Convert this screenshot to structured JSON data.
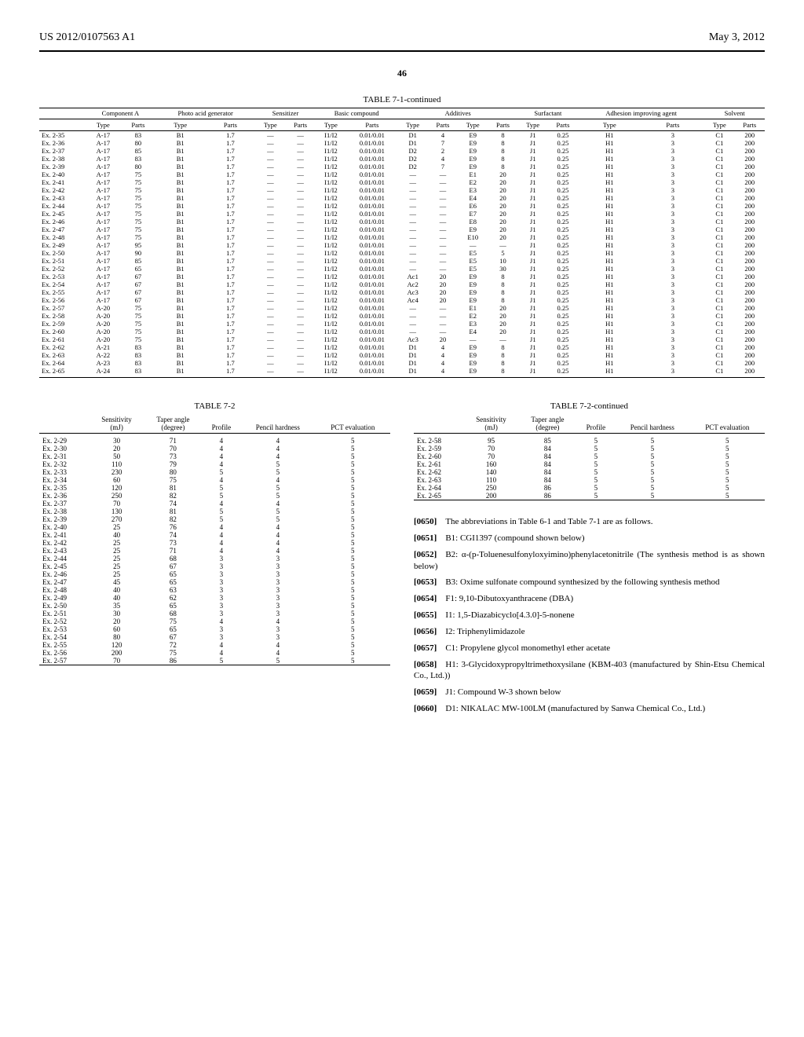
{
  "header": {
    "left": "US 2012/0107563 A1",
    "right": "May 3, 2012"
  },
  "page_number": "46",
  "table71": {
    "title": "TABLE 7-1-continued",
    "groups": [
      "Component A",
      "Photo acid generator",
      "Sensitizer",
      "Basic compound",
      "Additives",
      "",
      "Surfactant",
      "Adhesion improving agent",
      "Solvent"
    ],
    "subheaders": [
      "",
      "Type",
      "Parts",
      "Type",
      "Parts",
      "Type",
      "Parts",
      "Type",
      "Parts",
      "Type",
      "Parts",
      "Type",
      "Parts",
      "Type",
      "Parts",
      "Type",
      "Parts",
      "Type",
      "Parts"
    ],
    "rows": [
      [
        "Ex. 2-35",
        "A-17",
        "83",
        "B1",
        "1.7",
        "—",
        "—",
        "I1/I2",
        "0.01/0.01",
        "D1",
        "4",
        "E9",
        "8",
        "J1",
        "0.25",
        "H1",
        "3",
        "C1",
        "200"
      ],
      [
        "Ex. 2-36",
        "A-17",
        "80",
        "B1",
        "1.7",
        "—",
        "—",
        "I1/I2",
        "0.01/0.01",
        "D1",
        "7",
        "E9",
        "8",
        "J1",
        "0.25",
        "H1",
        "3",
        "C1",
        "200"
      ],
      [
        "Ex. 2-37",
        "A-17",
        "85",
        "B1",
        "1.7",
        "—",
        "—",
        "I1/I2",
        "0.01/0.01",
        "D2",
        "2",
        "E9",
        "8",
        "J1",
        "0.25",
        "H1",
        "3",
        "C1",
        "200"
      ],
      [
        "Ex. 2-38",
        "A-17",
        "83",
        "B1",
        "1.7",
        "—",
        "—",
        "I1/I2",
        "0.01/0.01",
        "D2",
        "4",
        "E9",
        "8",
        "J1",
        "0.25",
        "H1",
        "3",
        "C1",
        "200"
      ],
      [
        "Ex. 2-39",
        "A-17",
        "80",
        "B1",
        "1.7",
        "—",
        "—",
        "I1/I2",
        "0.01/0.01",
        "D2",
        "7",
        "E9",
        "8",
        "J1",
        "0.25",
        "H1",
        "3",
        "C1",
        "200"
      ],
      [
        "Ex. 2-40",
        "A-17",
        "75",
        "B1",
        "1.7",
        "—",
        "—",
        "I1/I2",
        "0.01/0.01",
        "—",
        "—",
        "E1",
        "20",
        "J1",
        "0.25",
        "H1",
        "3",
        "C1",
        "200"
      ],
      [
        "Ex. 2-41",
        "A-17",
        "75",
        "B1",
        "1.7",
        "—",
        "—",
        "I1/I2",
        "0.01/0.01",
        "—",
        "—",
        "E2",
        "20",
        "J1",
        "0.25",
        "H1",
        "3",
        "C1",
        "200"
      ],
      [
        "Ex. 2-42",
        "A-17",
        "75",
        "B1",
        "1.7",
        "—",
        "—",
        "I1/I2",
        "0.01/0.01",
        "—",
        "—",
        "E3",
        "20",
        "J1",
        "0.25",
        "H1",
        "3",
        "C1",
        "200"
      ],
      [
        "Ex. 2-43",
        "A-17",
        "75",
        "B1",
        "1.7",
        "—",
        "—",
        "I1/I2",
        "0.01/0.01",
        "—",
        "—",
        "E4",
        "20",
        "J1",
        "0.25",
        "H1",
        "3",
        "C1",
        "200"
      ],
      [
        "Ex. 2-44",
        "A-17",
        "75",
        "B1",
        "1.7",
        "—",
        "—",
        "I1/I2",
        "0.01/0.01",
        "—",
        "—",
        "E6",
        "20",
        "J1",
        "0.25",
        "H1",
        "3",
        "C1",
        "200"
      ],
      [
        "Ex. 2-45",
        "A-17",
        "75",
        "B1",
        "1.7",
        "—",
        "—",
        "I1/I2",
        "0.01/0.01",
        "—",
        "—",
        "E7",
        "20",
        "J1",
        "0.25",
        "H1",
        "3",
        "C1",
        "200"
      ],
      [
        "Ex. 2-46",
        "A-17",
        "75",
        "B1",
        "1.7",
        "—",
        "—",
        "I1/I2",
        "0.01/0.01",
        "—",
        "—",
        "E8",
        "20",
        "J1",
        "0.25",
        "H1",
        "3",
        "C1",
        "200"
      ],
      [
        "Ex. 2-47",
        "A-17",
        "75",
        "B1",
        "1.7",
        "—",
        "—",
        "I1/I2",
        "0.01/0.01",
        "—",
        "—",
        "E9",
        "20",
        "J1",
        "0.25",
        "H1",
        "3",
        "C1",
        "200"
      ],
      [
        "Ex. 2-48",
        "A-17",
        "75",
        "B1",
        "1.7",
        "—",
        "—",
        "I1/I2",
        "0.01/0.01",
        "—",
        "—",
        "E10",
        "20",
        "J1",
        "0.25",
        "H1",
        "3",
        "C1",
        "200"
      ],
      [
        "Ex. 2-49",
        "A-17",
        "95",
        "B1",
        "1.7",
        "—",
        "—",
        "I1/I2",
        "0.01/0.01",
        "—",
        "—",
        "—",
        "—",
        "J1",
        "0.25",
        "H1",
        "3",
        "C1",
        "200"
      ],
      [
        "Ex. 2-50",
        "A-17",
        "90",
        "B1",
        "1.7",
        "—",
        "—",
        "I1/I2",
        "0.01/0.01",
        "—",
        "—",
        "E5",
        "5",
        "J1",
        "0.25",
        "H1",
        "3",
        "C1",
        "200"
      ],
      [
        "Ex. 2-51",
        "A-17",
        "85",
        "B1",
        "1.7",
        "—",
        "—",
        "I1/I2",
        "0.01/0.01",
        "—",
        "—",
        "E5",
        "10",
        "J1",
        "0.25",
        "H1",
        "3",
        "C1",
        "200"
      ],
      [
        "Ex. 2-52",
        "A-17",
        "65",
        "B1",
        "1.7",
        "—",
        "—",
        "I1/I2",
        "0.01/0.01",
        "—",
        "—",
        "E5",
        "30",
        "J1",
        "0.25",
        "H1",
        "3",
        "C1",
        "200"
      ],
      [
        "Ex. 2-53",
        "A-17",
        "67",
        "B1",
        "1.7",
        "—",
        "—",
        "I1/I2",
        "0.01/0.01",
        "Ac1",
        "20",
        "E9",
        "8",
        "J1",
        "0.25",
        "H1",
        "3",
        "C1",
        "200"
      ],
      [
        "Ex. 2-54",
        "A-17",
        "67",
        "B1",
        "1.7",
        "—",
        "—",
        "I1/I2",
        "0.01/0.01",
        "Ac2",
        "20",
        "E9",
        "8",
        "J1",
        "0.25",
        "H1",
        "3",
        "C1",
        "200"
      ],
      [
        "Ex. 2-55",
        "A-17",
        "67",
        "B1",
        "1.7",
        "—",
        "—",
        "I1/I2",
        "0.01/0.01",
        "Ac3",
        "20",
        "E9",
        "8",
        "J1",
        "0.25",
        "H1",
        "3",
        "C1",
        "200"
      ],
      [
        "Ex. 2-56",
        "A-17",
        "67",
        "B1",
        "1.7",
        "—",
        "—",
        "I1/I2",
        "0.01/0.01",
        "Ac4",
        "20",
        "E9",
        "8",
        "J1",
        "0.25",
        "H1",
        "3",
        "C1",
        "200"
      ],
      [
        "Ex. 2-57",
        "A-20",
        "75",
        "B1",
        "1.7",
        "—",
        "—",
        "I1/I2",
        "0.01/0.01",
        "—",
        "—",
        "E1",
        "20",
        "J1",
        "0.25",
        "H1",
        "3",
        "C1",
        "200"
      ],
      [
        "Ex. 2-58",
        "A-20",
        "75",
        "B1",
        "1.7",
        "—",
        "—",
        "I1/I2",
        "0.01/0.01",
        "—",
        "—",
        "E2",
        "20",
        "J1",
        "0.25",
        "H1",
        "3",
        "C1",
        "200"
      ],
      [
        "Ex. 2-59",
        "A-20",
        "75",
        "B1",
        "1.7",
        "—",
        "—",
        "I1/I2",
        "0.01/0.01",
        "—",
        "—",
        "E3",
        "20",
        "J1",
        "0.25",
        "H1",
        "3",
        "C1",
        "200"
      ],
      [
        "Ex. 2-60",
        "A-20",
        "75",
        "B1",
        "1.7",
        "—",
        "—",
        "I1/I2",
        "0.01/0.01",
        "—",
        "—",
        "E4",
        "20",
        "J1",
        "0.25",
        "H1",
        "3",
        "C1",
        "200"
      ],
      [
        "Ex. 2-61",
        "A-20",
        "75",
        "B1",
        "1.7",
        "—",
        "—",
        "I1/I2",
        "0.01/0.01",
        "Ac3",
        "20",
        "—",
        "—",
        "J1",
        "0.25",
        "H1",
        "3",
        "C1",
        "200"
      ],
      [
        "Ex. 2-62",
        "A-21",
        "83",
        "B1",
        "1.7",
        "—",
        "—",
        "I1/I2",
        "0.01/0.01",
        "D1",
        "4",
        "E9",
        "8",
        "J1",
        "0.25",
        "H1",
        "3",
        "C1",
        "200"
      ],
      [
        "Ex. 2-63",
        "A-22",
        "83",
        "B1",
        "1.7",
        "—",
        "—",
        "I1/I2",
        "0.01/0.01",
        "D1",
        "4",
        "E9",
        "8",
        "J1",
        "0.25",
        "H1",
        "3",
        "C1",
        "200"
      ],
      [
        "Ex. 2-64",
        "A-23",
        "83",
        "B1",
        "1.7",
        "—",
        "—",
        "I1/I2",
        "0.01/0.01",
        "D1",
        "4",
        "E9",
        "8",
        "J1",
        "0.25",
        "H1",
        "3",
        "C1",
        "200"
      ],
      [
        "Ex. 2-65",
        "A-24",
        "83",
        "B1",
        "1.7",
        "—",
        "—",
        "I1/I2",
        "0.01/0.01",
        "D1",
        "4",
        "E9",
        "8",
        "J1",
        "0.25",
        "H1",
        "3",
        "C1",
        "200"
      ]
    ]
  },
  "table72a": {
    "title": "TABLE 7-2",
    "headers": [
      "",
      "Sensitivity (mJ)",
      "Taper angle (degree)",
      "Profile",
      "Pencil hardness",
      "PCT evaluation"
    ],
    "rows": [
      [
        "Ex. 2-29",
        "30",
        "71",
        "4",
        "4",
        "5"
      ],
      [
        "Ex. 2-30",
        "20",
        "70",
        "4",
        "4",
        "5"
      ],
      [
        "Ex. 2-31",
        "50",
        "73",
        "4",
        "4",
        "5"
      ],
      [
        "Ex. 2-32",
        "110",
        "79",
        "4",
        "5",
        "5"
      ],
      [
        "Ex. 2-33",
        "230",
        "80",
        "5",
        "5",
        "5"
      ],
      [
        "Ex. 2-34",
        "60",
        "75",
        "4",
        "4",
        "5"
      ],
      [
        "Ex. 2-35",
        "120",
        "81",
        "5",
        "5",
        "5"
      ],
      [
        "Ex. 2-36",
        "250",
        "82",
        "5",
        "5",
        "5"
      ],
      [
        "Ex. 2-37",
        "70",
        "74",
        "4",
        "4",
        "5"
      ],
      [
        "Ex. 2-38",
        "130",
        "81",
        "5",
        "5",
        "5"
      ],
      [
        "Ex. 2-39",
        "270",
        "82",
        "5",
        "5",
        "5"
      ],
      [
        "Ex. 2-40",
        "25",
        "76",
        "4",
        "4",
        "5"
      ],
      [
        "Ex. 2-41",
        "40",
        "74",
        "4",
        "4",
        "5"
      ],
      [
        "Ex. 2-42",
        "25",
        "73",
        "4",
        "4",
        "5"
      ],
      [
        "Ex. 2-43",
        "25",
        "71",
        "4",
        "4",
        "5"
      ],
      [
        "Ex. 2-44",
        "25",
        "68",
        "3",
        "3",
        "5"
      ],
      [
        "Ex. 2-45",
        "25",
        "67",
        "3",
        "3",
        "5"
      ],
      [
        "Ex. 2-46",
        "25",
        "65",
        "3",
        "3",
        "5"
      ],
      [
        "Ex. 2-47",
        "45",
        "65",
        "3",
        "3",
        "5"
      ],
      [
        "Ex. 2-48",
        "40",
        "63",
        "3",
        "3",
        "5"
      ],
      [
        "Ex. 2-49",
        "40",
        "62",
        "3",
        "3",
        "5"
      ],
      [
        "Ex. 2-50",
        "35",
        "65",
        "3",
        "3",
        "5"
      ],
      [
        "Ex. 2-51",
        "30",
        "68",
        "3",
        "3",
        "5"
      ],
      [
        "Ex. 2-52",
        "20",
        "75",
        "4",
        "4",
        "5"
      ],
      [
        "Ex. 2-53",
        "60",
        "65",
        "3",
        "3",
        "5"
      ],
      [
        "Ex. 2-54",
        "80",
        "67",
        "3",
        "3",
        "5"
      ],
      [
        "Ex. 2-55",
        "120",
        "72",
        "4",
        "4",
        "5"
      ],
      [
        "Ex. 2-56",
        "200",
        "75",
        "4",
        "4",
        "5"
      ],
      [
        "Ex. 2-57",
        "70",
        "86",
        "5",
        "5",
        "5"
      ]
    ]
  },
  "table72b": {
    "title": "TABLE 7-2-continued",
    "headers": [
      "",
      "Sensitivity (mJ)",
      "Taper angle (degree)",
      "Profile",
      "Pencil hardness",
      "PCT evaluation"
    ],
    "rows": [
      [
        "Ex. 2-58",
        "95",
        "85",
        "5",
        "5",
        "5"
      ],
      [
        "Ex. 2-59",
        "70",
        "84",
        "5",
        "5",
        "5"
      ],
      [
        "Ex. 2-60",
        "70",
        "84",
        "5",
        "5",
        "5"
      ],
      [
        "Ex. 2-61",
        "160",
        "84",
        "5",
        "5",
        "5"
      ],
      [
        "Ex. 2-62",
        "140",
        "84",
        "5",
        "5",
        "5"
      ],
      [
        "Ex. 2-63",
        "110",
        "84",
        "5",
        "5",
        "5"
      ],
      [
        "Ex. 2-64",
        "250",
        "86",
        "5",
        "5",
        "5"
      ],
      [
        "Ex. 2-65",
        "200",
        "86",
        "5",
        "5",
        "5"
      ]
    ]
  },
  "paragraphs": [
    {
      "num": "[0650]",
      "text": "The abbreviations in Table 6-1 and Table 7-1 are as follows."
    },
    {
      "num": "[0651]",
      "text": "B1: CGI1397 (compound shown below)"
    },
    {
      "num": "[0652]",
      "text": "B2: α-(p-Toluenesulfonyloxyimino)phenylacetonitrile (The synthesis method is as shown below)"
    },
    {
      "num": "[0653]",
      "text": "B3: Oxime sulfonate compound synthesized by the following synthesis method"
    },
    {
      "num": "[0654]",
      "text": "F1: 9,10-Dibutoxyanthracene (DBA)"
    },
    {
      "num": "[0655]",
      "text": "I1: 1,5-Diazabicyclo[4.3.0]-5-nonene"
    },
    {
      "num": "[0656]",
      "text": "I2: Triphenylimidazole"
    },
    {
      "num": "[0657]",
      "text": "C1: Propylene glycol monomethyl ether acetate"
    },
    {
      "num": "[0658]",
      "text": "H1: 3-Glycidoxypropyltrimethoxysilane (KBM-403 (manufactured by Shin-Etsu Chemical Co., Ltd.))"
    },
    {
      "num": "[0659]",
      "text": "J1: Compound W-3 shown below"
    },
    {
      "num": "[0660]",
      "text": "D1: NIKALAC MW-100LM (manufactured by Sanwa Chemical Co., Ltd.)"
    }
  ]
}
